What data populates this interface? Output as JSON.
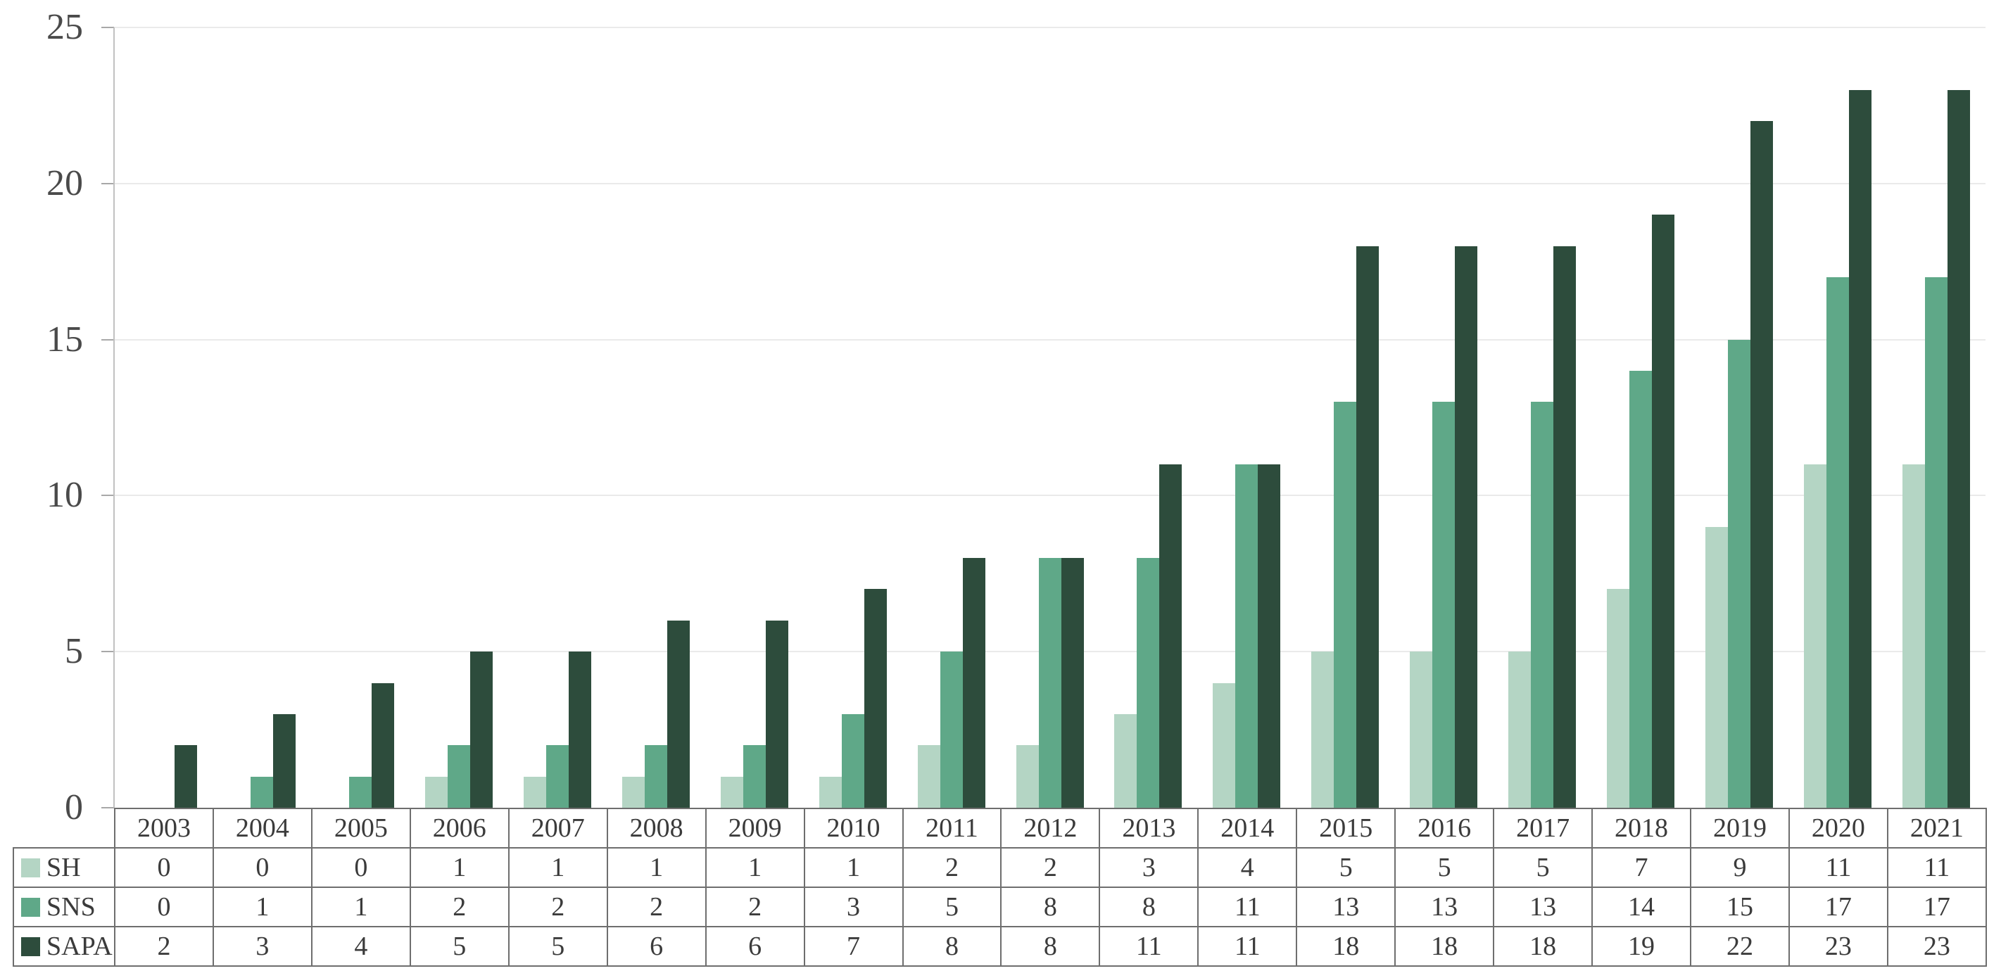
{
  "chart_data": {
    "type": "bar",
    "title": "",
    "xlabel": "",
    "ylabel": "",
    "categories": [
      "2003",
      "2004",
      "2005",
      "2006",
      "2007",
      "2008",
      "2009",
      "2010",
      "2011",
      "2012",
      "2013",
      "2014",
      "2015",
      "2016",
      "2017",
      "2018",
      "2019",
      "2020",
      "2021"
    ],
    "series": [
      {
        "name": "SH",
        "color": "#b4d5c4",
        "values": [
          0,
          0,
          0,
          1,
          1,
          1,
          1,
          1,
          2,
          2,
          3,
          4,
          5,
          5,
          5,
          7,
          9,
          11,
          11
        ]
      },
      {
        "name": "SNS",
        "color": "#5fa888",
        "values": [
          0,
          1,
          1,
          2,
          2,
          2,
          2,
          3,
          5,
          8,
          8,
          11,
          13,
          13,
          13,
          14,
          15,
          17,
          17
        ]
      },
      {
        "name": "SAPA",
        "color": "#2d4c3c",
        "values": [
          2,
          3,
          4,
          5,
          5,
          6,
          6,
          7,
          8,
          8,
          11,
          11,
          18,
          18,
          18,
          19,
          22,
          23,
          23
        ]
      }
    ],
    "ylim": [
      0,
      25
    ],
    "y_ticks": [
      0,
      5,
      10,
      15,
      20,
      25
    ],
    "grid": true,
    "legend_position": "table-left"
  },
  "colors": {
    "gridline": "#eaeaea",
    "axis_line": "#c1c1c1",
    "tick": "#a8a8a8",
    "table_border": "#6e6e6e",
    "text": "#3b3b3b",
    "y_label_text": "#4a4a4a"
  }
}
